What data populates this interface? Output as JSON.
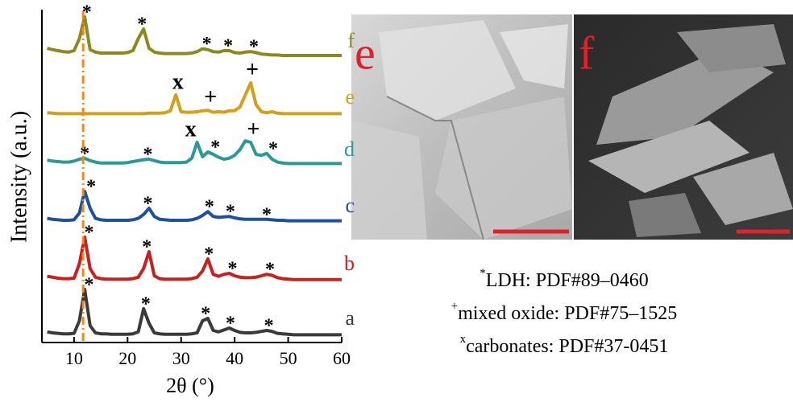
{
  "chart_data": {
    "type": "line",
    "xlabel": "2θ (°)",
    "ylabel": "Intensity (a.u.)",
    "xlim": [
      4,
      60
    ],
    "xticks": [
      10,
      20,
      30,
      40,
      50,
      60
    ],
    "ref_line_x": 11.7,
    "ref_line_color": "#f08a1c",
    "x": [
      5,
      6,
      7,
      8,
      9,
      10,
      11,
      12,
      13,
      14,
      15,
      16,
      17,
      18,
      19,
      20,
      21,
      22,
      23,
      24,
      25,
      26,
      27,
      28,
      29,
      30,
      31,
      32,
      33,
      34,
      35,
      36,
      37,
      38,
      39,
      40,
      41,
      42,
      43,
      44,
      45,
      46,
      47,
      48,
      49,
      50,
      51,
      52,
      53,
      54,
      55,
      56,
      57,
      58,
      59,
      60
    ],
    "series": [
      {
        "name": "a",
        "color": "#3a3a3a",
        "values": [
          12,
          10,
          9,
          8,
          8,
          9,
          35,
          100,
          25,
          10,
          8,
          8,
          7,
          7,
          7,
          7,
          8,
          12,
          60,
          30,
          10,
          8,
          7,
          7,
          7,
          7,
          7,
          8,
          10,
          35,
          40,
          15,
          12,
          16,
          20,
          15,
          11,
          10,
          10,
          11,
          13,
          15,
          13,
          9,
          8,
          7,
          6,
          6,
          6,
          6,
          6,
          6,
          6,
          6,
          6,
          6
        ],
        "annotations": [
          {
            "x": 12.8,
            "label": "*"
          },
          {
            "x": 23.4,
            "label": "*"
          },
          {
            "x": 34.6,
            "label": "*"
          },
          {
            "x": 39.2,
            "label": "*"
          },
          {
            "x": 46.4,
            "label": "*"
          }
        ]
      },
      {
        "name": "b",
        "color": "#c8201e",
        "values": [
          14,
          12,
          10,
          9,
          9,
          10,
          40,
          95,
          30,
          12,
          9,
          8,
          8,
          8,
          8,
          8,
          9,
          12,
          30,
          65,
          15,
          9,
          8,
          8,
          8,
          8,
          8,
          9,
          12,
          25,
          50,
          18,
          14,
          18,
          20,
          15,
          12,
          11,
          11,
          12,
          15,
          18,
          16,
          11,
          9,
          8,
          7,
          7,
          7,
          7,
          7,
          7,
          7,
          7,
          7,
          7
        ],
        "annotations": [
          {
            "x": 12.8,
            "label": "*"
          },
          {
            "x": 23.6,
            "label": "*"
          },
          {
            "x": 35.2,
            "label": "*"
          },
          {
            "x": 39.6,
            "label": "*"
          },
          {
            "x": 46.6,
            "label": "*"
          }
        ]
      },
      {
        "name": "c",
        "color": "#1f4fa0",
        "values": [
          14,
          12,
          11,
          10,
          10,
          11,
          25,
          70,
          35,
          14,
          11,
          10,
          10,
          10,
          10,
          10,
          11,
          14,
          22,
          35,
          18,
          12,
          11,
          10,
          10,
          10,
          10,
          11,
          14,
          20,
          28,
          18,
          16,
          17,
          18,
          15,
          13,
          12,
          12,
          12,
          12,
          12,
          11,
          10,
          10,
          9,
          9,
          9,
          9,
          9,
          9,
          9,
          9,
          9,
          9,
          9
        ],
        "annotations": [
          {
            "x": 13.2,
            "label": "*"
          },
          {
            "x": 23.8,
            "label": "*"
          },
          {
            "x": 35.3,
            "label": "*"
          },
          {
            "x": 39.2,
            "label": "*"
          },
          {
            "x": 46.0,
            "label": "*"
          }
        ]
      },
      {
        "name": "d",
        "color": "#2a9a96",
        "values": [
          18,
          16,
          15,
          14,
          14,
          16,
          20,
          22,
          17,
          14,
          12,
          12,
          12,
          12,
          12,
          13,
          15,
          17,
          19,
          20,
          17,
          14,
          13,
          13,
          13,
          13,
          14,
          22,
          55,
          25,
          35,
          30,
          24,
          20,
          22,
          28,
          40,
          58,
          55,
          30,
          28,
          32,
          20,
          14,
          12,
          11,
          11,
          11,
          11,
          11,
          11,
          11,
          11,
          11,
          11,
          11
        ],
        "annotations": [
          {
            "x": 12.0,
            "label": "*"
          },
          {
            "x": 23.8,
            "label": "*"
          },
          {
            "x": 31.8,
            "label": "x"
          },
          {
            "x": 36.4,
            "label": "*"
          },
          {
            "x": 43.5,
            "label": "+"
          },
          {
            "x": 47.2,
            "label": "*"
          }
        ]
      },
      {
        "name": "e",
        "color": "#d4a017",
        "values": [
          8,
          7,
          6,
          6,
          6,
          6,
          6,
          6,
          6,
          6,
          6,
          6,
          6,
          6,
          6,
          6,
          6,
          6,
          6,
          7,
          7,
          7,
          8,
          12,
          45,
          10,
          9,
          9,
          10,
          12,
          13,
          9,
          10,
          9,
          12,
          12,
          20,
          45,
          70,
          25,
          10,
          8,
          10,
          7,
          6,
          6,
          6,
          6,
          6,
          6,
          6,
          6,
          6,
          6,
          6,
          6
        ],
        "annotations": [
          {
            "x": 29.4,
            "label": "x"
          },
          {
            "x": 35.5,
            "label": "+"
          },
          {
            "x": 43.3,
            "label": "+"
          }
        ]
      },
      {
        "name": "f",
        "color": "#8a8a1e",
        "values": [
          25,
          22,
          20,
          18,
          17,
          20,
          45,
          90,
          22,
          17,
          15,
          15,
          15,
          15,
          15,
          16,
          20,
          45,
          65,
          25,
          17,
          15,
          14,
          14,
          14,
          14,
          14,
          15,
          18,
          24,
          22,
          18,
          17,
          20,
          20,
          16,
          15,
          17,
          18,
          16,
          13,
          12,
          11,
          11,
          10,
          10,
          10,
          10,
          10,
          10,
          10,
          10,
          10,
          10,
          10,
          10
        ],
        "annotations": [
          {
            "x": 12.4,
            "label": "*"
          },
          {
            "x": 22.7,
            "label": "*"
          },
          {
            "x": 34.8,
            "label": "*"
          },
          {
            "x": 38.8,
            "label": "*"
          },
          {
            "x": 43.6,
            "label": "*"
          }
        ]
      }
    ]
  },
  "micrographs": [
    {
      "label": "e"
    },
    {
      "label": "f"
    }
  ],
  "notes": [
    {
      "mark": "*",
      "text": "LDH: PDF#89–0460"
    },
    {
      "mark": "+",
      "text": "mixed oxide: PDF#75–1525"
    },
    {
      "mark": "x",
      "text": "carbonates: PDF#37-0451"
    }
  ]
}
